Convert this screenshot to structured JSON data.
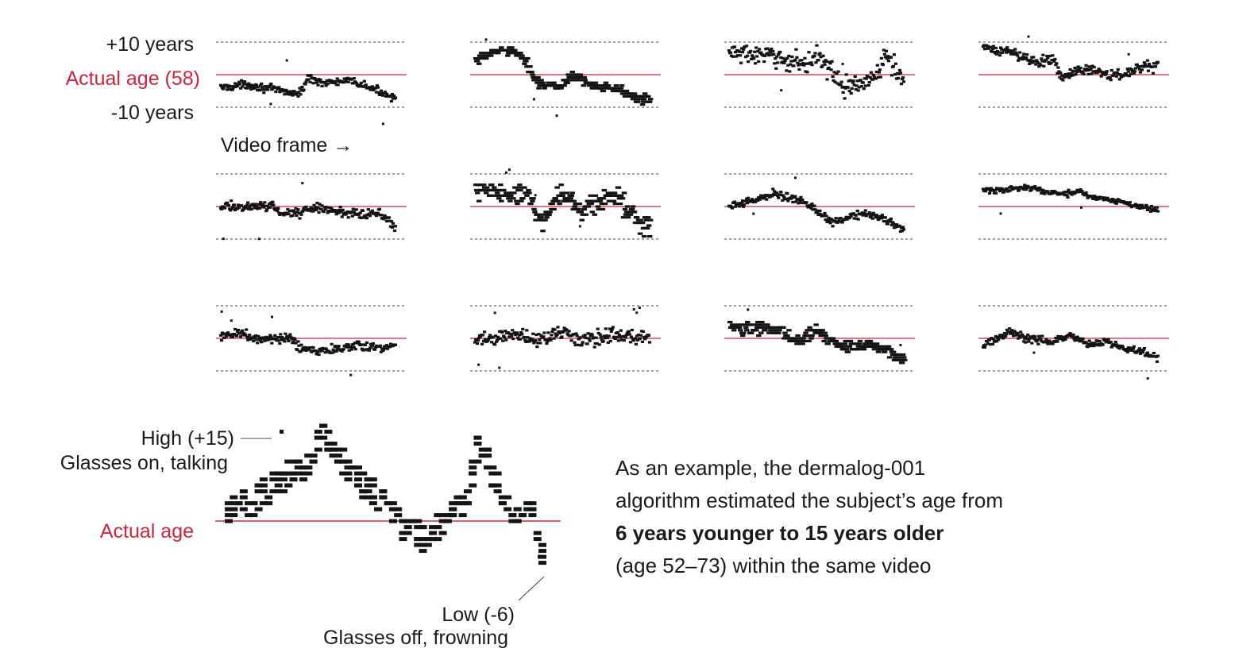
{
  "colors": {
    "reference": "#c8283f",
    "points": "#141414",
    "grid": "#444444"
  },
  "labels": {
    "plus10": "+10 years",
    "actual_age_58": "Actual age (58)",
    "minus10": "-10 years",
    "video_frame": "Video frame →",
    "high": "High (+15)",
    "glasses_on": "Glasses on, talking",
    "actual_age": "Actual age",
    "low": "Low (-6)",
    "glasses_off": "Glasses off, frowning"
  },
  "note": {
    "line1": "As an example, the dermalog-001",
    "line2": "algorithm estimated the subject’s age from",
    "line3_bold": "6 years younger to 15 years older",
    "line4": "(age 52–73) within the same video"
  },
  "chart_data": {
    "type": "scatter",
    "actual_age": 58,
    "small_multiples": {
      "y_unit": "estimated age minus actual age (years)",
      "ylim": [
        -10,
        10
      ],
      "reference_lines": [
        10,
        0,
        -10
      ],
      "rows": 3,
      "cols": 4,
      "panels": [
        {
          "profile": [
            [
              0,
              -4
            ],
            [
              0.15,
              -3
            ],
            [
              0.3,
              -4.5
            ],
            [
              0.45,
              -6
            ],
            [
              0.5,
              -1
            ],
            [
              0.6,
              -2.5
            ],
            [
              0.75,
              -2
            ],
            [
              0.85,
              -4
            ],
            [
              1,
              -7
            ]
          ],
          "noise": 1.2,
          "spikes": 3,
          "steps": false
        },
        {
          "profile": [
            [
              0,
              4
            ],
            [
              0.1,
              7
            ],
            [
              0.2,
              8
            ],
            [
              0.3,
              3
            ],
            [
              0.35,
              -2
            ],
            [
              0.45,
              -4
            ],
            [
              0.5,
              -3
            ],
            [
              0.55,
              0
            ],
            [
              0.65,
              -3
            ],
            [
              0.8,
              -4
            ],
            [
              0.9,
              -7
            ],
            [
              1,
              -8
            ]
          ],
          "noise": 1.4,
          "spikes": 3,
          "steps": true
        },
        {
          "profile": [
            [
              0,
              7
            ],
            [
              0.15,
              6
            ],
            [
              0.3,
              5
            ],
            [
              0.45,
              3
            ],
            [
              0.5,
              7
            ],
            [
              0.6,
              0
            ],
            [
              0.65,
              -4
            ],
            [
              0.75,
              -3
            ],
            [
              0.85,
              0
            ],
            [
              0.9,
              6
            ],
            [
              1,
              -2
            ]
          ],
          "noise": 3.0,
          "spikes": 2,
          "steps": false
        },
        {
          "profile": [
            [
              0,
              8
            ],
            [
              0.15,
              7
            ],
            [
              0.3,
              4
            ],
            [
              0.4,
              5
            ],
            [
              0.45,
              -1
            ],
            [
              0.6,
              2
            ],
            [
              0.7,
              0
            ],
            [
              0.8,
              0
            ],
            [
              0.9,
              2
            ],
            [
              1,
              3
            ]
          ],
          "noise": 1.6,
          "spikes": 2,
          "steps": false
        },
        {
          "profile": [
            [
              0,
              0
            ],
            [
              0.3,
              0
            ],
            [
              0.35,
              -2
            ],
            [
              0.45,
              -2
            ],
            [
              0.55,
              0
            ],
            [
              0.7,
              -2
            ],
            [
              0.9,
              -2
            ],
            [
              1,
              -6
            ]
          ],
          "noise": 1.4,
          "spikes": 3,
          "steps": false
        },
        {
          "profile": [
            [
              0,
              4
            ],
            [
              0.1,
              5
            ],
            [
              0.2,
              3
            ],
            [
              0.3,
              4
            ],
            [
              0.35,
              -2
            ],
            [
              0.4,
              -5
            ],
            [
              0.45,
              2
            ],
            [
              0.55,
              3
            ],
            [
              0.6,
              -2
            ],
            [
              0.7,
              2
            ],
            [
              0.8,
              3
            ],
            [
              0.9,
              -3
            ],
            [
              1,
              -6
            ]
          ],
          "noise": 3.4,
          "spikes": 4,
          "steps": true
        },
        {
          "profile": [
            [
              0,
              0
            ],
            [
              0.15,
              2
            ],
            [
              0.25,
              4
            ],
            [
              0.4,
              2
            ],
            [
              0.5,
              -1
            ],
            [
              0.6,
              -5
            ],
            [
              0.7,
              -3
            ],
            [
              0.8,
              -2
            ],
            [
              0.9,
              -4
            ],
            [
              1,
              -7
            ]
          ],
          "noise": 1.2,
          "spikes": 2,
          "steps": false
        },
        {
          "profile": [
            [
              0,
              5
            ],
            [
              0.1,
              5
            ],
            [
              0.25,
              6
            ],
            [
              0.4,
              4
            ],
            [
              0.5,
              4
            ],
            [
              0.55,
              5
            ],
            [
              0.6,
              3
            ],
            [
              0.75,
              2
            ],
            [
              0.9,
              0
            ],
            [
              1,
              -1
            ]
          ],
          "noise": 0.9,
          "spikes": 2,
          "steps": false
        },
        {
          "profile": [
            [
              0,
              0
            ],
            [
              0.1,
              2
            ],
            [
              0.2,
              0
            ],
            [
              0.4,
              0
            ],
            [
              0.45,
              -3
            ],
            [
              0.6,
              -4
            ],
            [
              0.75,
              -2
            ],
            [
              0.85,
              -3
            ],
            [
              1,
              -2
            ]
          ],
          "noise": 1.4,
          "spikes": 4,
          "steps": false
        },
        {
          "profile": [
            [
              0,
              -1
            ],
            [
              0.2,
              1
            ],
            [
              0.4,
              0
            ],
            [
              0.5,
              2
            ],
            [
              0.6,
              0
            ],
            [
              0.8,
              1
            ],
            [
              1,
              0
            ]
          ],
          "noise": 2.4,
          "spikes": 6,
          "steps": false
        },
        {
          "profile": [
            [
              0,
              3
            ],
            [
              0.2,
              3
            ],
            [
              0.3,
              2
            ],
            [
              0.4,
              -1
            ],
            [
              0.5,
              3
            ],
            [
              0.55,
              0
            ],
            [
              0.6,
              -1
            ],
            [
              0.65,
              -3
            ],
            [
              0.8,
              -2
            ],
            [
              0.9,
              -4
            ],
            [
              1,
              -7
            ]
          ],
          "noise": 1.8,
          "spikes": 2,
          "steps": true
        },
        {
          "profile": [
            [
              0,
              -2
            ],
            [
              0.15,
              2
            ],
            [
              0.25,
              0
            ],
            [
              0.4,
              -1
            ],
            [
              0.5,
              1
            ],
            [
              0.6,
              -2
            ],
            [
              0.7,
              -1
            ],
            [
              0.8,
              -3
            ],
            [
              0.9,
              -4
            ],
            [
              1,
              -6
            ]
          ],
          "noise": 1.2,
          "spikes": 2,
          "steps": false
        }
      ]
    },
    "example": {
      "name": "dermalog-001",
      "y_unit": "estimated age minus actual age (years)",
      "high": 15,
      "low": -6,
      "ylim": [
        -9,
        17
      ],
      "profile": [
        [
          0,
          2
        ],
        [
          0.06,
          3
        ],
        [
          0.12,
          5
        ],
        [
          0.18,
          7
        ],
        [
          0.24,
          9
        ],
        [
          0.3,
          14
        ],
        [
          0.36,
          10
        ],
        [
          0.42,
          7
        ],
        [
          0.48,
          4
        ],
        [
          0.54,
          0
        ],
        [
          0.62,
          -3
        ],
        [
          0.66,
          -2
        ],
        [
          0.7,
          1
        ],
        [
          0.76,
          4
        ],
        [
          0.8,
          13
        ],
        [
          0.84,
          8
        ],
        [
          0.88,
          3
        ],
        [
          0.92,
          1
        ],
        [
          0.96,
          5
        ],
        [
          1,
          -6
        ]
      ]
    }
  }
}
